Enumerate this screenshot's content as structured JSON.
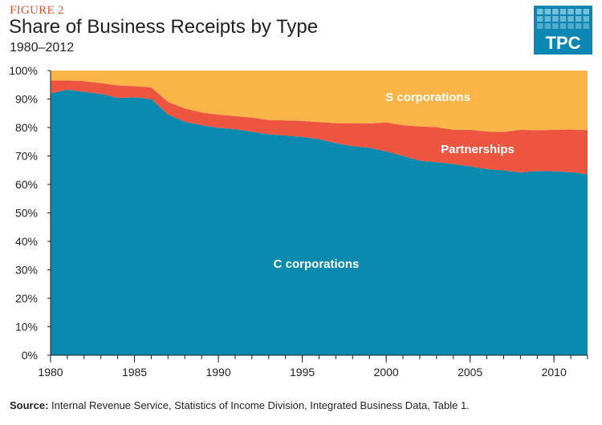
{
  "figure_label": "FIGURE 2",
  "logo_text": "TPC",
  "source": {
    "label": "Source:",
    "text": "Internal Revenue Service, Statistics of Income Division, Integrated Business Data, Table 1."
  },
  "colors": {
    "c_corporations": "#0a8aae",
    "partnerships": "#ee5540",
    "s_corporations": "#fbb447",
    "logo_bg": "#0c87b3",
    "figure_label": "#e2532d"
  },
  "chart_data": {
    "type": "area",
    "stacked": true,
    "title": "Share of Business Receipts by Type",
    "subtitle": "1980–2012",
    "x": [
      1980,
      1981,
      1982,
      1983,
      1984,
      1985,
      1986,
      1987,
      1988,
      1989,
      1990,
      1991,
      1992,
      1993,
      1994,
      1995,
      1996,
      1997,
      1998,
      1999,
      2000,
      2001,
      2002,
      2003,
      2004,
      2005,
      2006,
      2007,
      2008,
      2009,
      2010,
      2011,
      2012
    ],
    "xlim": [
      1980,
      2012
    ],
    "x_ticks": [
      1980,
      1985,
      1990,
      1995,
      2000,
      2005,
      2010
    ],
    "ylim": [
      0,
      100
    ],
    "y_ticks": [
      "0%",
      "10%",
      "20%",
      "30%",
      "40%",
      "50%",
      "60%",
      "70%",
      "80%",
      "90%",
      "100%"
    ],
    "series": [
      {
        "name": "C corporations",
        "values": [
          92.0,
          93.3,
          92.5,
          91.8,
          90.4,
          90.6,
          90.0,
          84.5,
          82.0,
          80.8,
          79.9,
          79.4,
          78.5,
          77.6,
          77.2,
          76.7,
          75.9,
          74.5,
          73.4,
          72.9,
          71.6,
          70.0,
          68.3,
          67.8,
          67.2,
          66.3,
          65.4,
          64.9,
          64.2,
          64.7,
          64.6,
          64.3,
          63.6
        ]
      },
      {
        "name": "Partnerships",
        "values": [
          4.5,
          3.2,
          3.8,
          3.8,
          4.4,
          3.9,
          4.1,
          4.5,
          4.7,
          4.5,
          4.6,
          4.6,
          5.0,
          5.0,
          5.3,
          5.6,
          6.0,
          7.0,
          8.1,
          8.5,
          10.2,
          10.8,
          12.1,
          12.3,
          12.0,
          12.9,
          13.2,
          13.5,
          15.0,
          14.3,
          14.6,
          15.0,
          15.5
        ]
      },
      {
        "name": "S corporations",
        "values": [
          3.5,
          3.5,
          3.7,
          4.4,
          5.2,
          5.5,
          5.9,
          11.0,
          13.3,
          14.7,
          15.5,
          16.0,
          16.5,
          17.4,
          17.5,
          17.7,
          18.1,
          18.5,
          18.5,
          18.6,
          18.2,
          19.2,
          19.6,
          19.9,
          20.8,
          20.8,
          21.4,
          21.6,
          20.8,
          21.0,
          20.8,
          20.7,
          20.9
        ]
      }
    ]
  }
}
